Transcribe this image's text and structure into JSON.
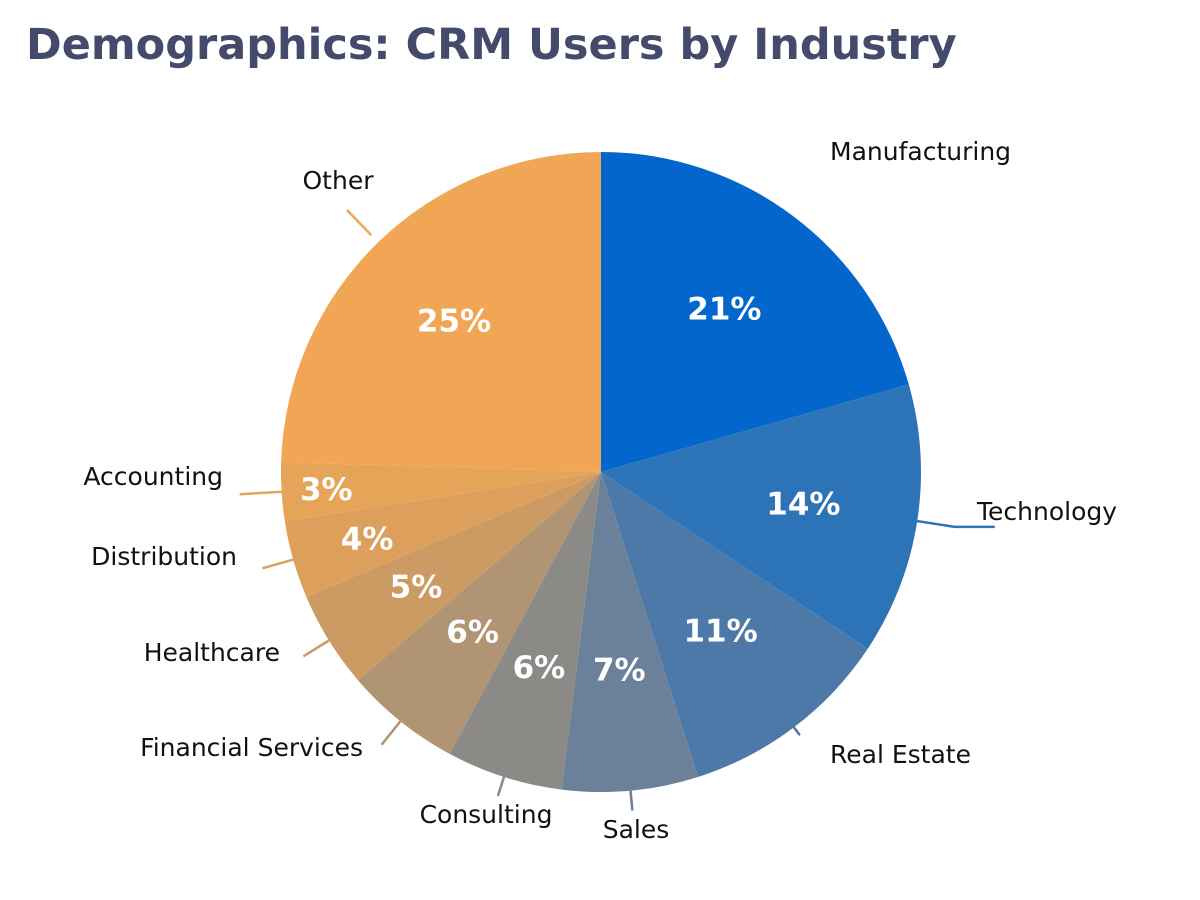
{
  "title": "Demographics: CRM Users by Industry",
  "chart_data": {
    "type": "pie",
    "title": "Demographics: CRM Users by Industry",
    "start": "12 o'clock",
    "direction": "clockwise",
    "slices": [
      {
        "label": "Manufacturing",
        "value": 21,
        "display": "21%",
        "color": "#0366cc"
      },
      {
        "label": "Technology",
        "value": 14,
        "display": "14%",
        "color": "#2d73b8"
      },
      {
        "label": "Real Estate",
        "value": 11,
        "display": "11%",
        "color": "#4c79a8"
      },
      {
        "label": "Sales",
        "value": 7,
        "display": "7%",
        "color": "#6b8099"
      },
      {
        "label": "Consulting",
        "value": 6,
        "display": "6%",
        "color": "#8c8a86"
      },
      {
        "label": "Financial Services",
        "value": 6,
        "display": "6%",
        "color": "#b09474"
      },
      {
        "label": "Healthcare",
        "value": 5,
        "display": "5%",
        "color": "#cc9a63"
      },
      {
        "label": "Distribution",
        "value": 4,
        "display": "4%",
        "color": "#dca05c"
      },
      {
        "label": "Accounting",
        "value": 3,
        "display": "3%",
        "color": "#e6a458"
      },
      {
        "label": "Other",
        "value": 25,
        "display": "25%",
        "color": "#f0a654"
      }
    ]
  }
}
